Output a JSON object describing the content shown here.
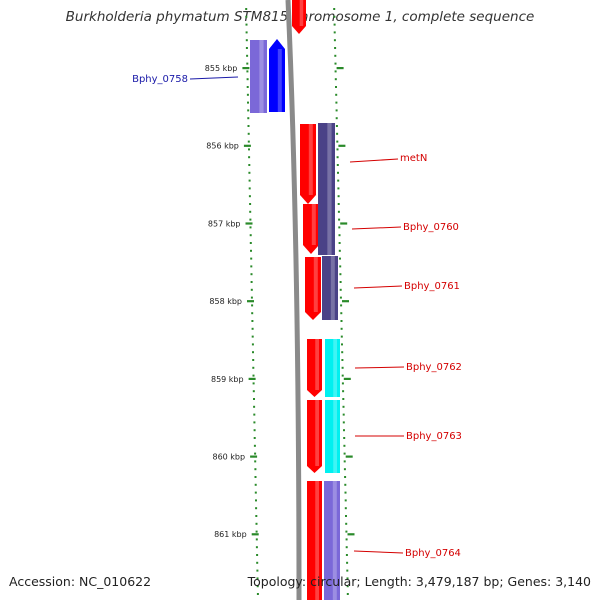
{
  "title": "Burkholderia phymatum STM815 chromosome 1, complete sequence",
  "accession": "Accession: NC_010622",
  "topology": "Topology: circular; Length: 3,479,187 bp; Genes: 3,140",
  "colors": {
    "forward": "#ff0000",
    "forward_blue": "#0000ff",
    "reverse_violet": "#7b68d8",
    "reverse_dark": "#4a4287",
    "reverse_cyan": "#00f0f0",
    "label_red": "#d40000",
    "label_blue": "#1a1aa8",
    "tick": "#2a8a2a",
    "backbone": "#8a8a8a"
  },
  "ticks": [
    {
      "label": "855 kbp",
      "kbp": 855
    },
    {
      "label": "856 kbp",
      "kbp": 856
    },
    {
      "label": "857 kbp",
      "kbp": 857
    },
    {
      "label": "858 kbp",
      "kbp": 858
    },
    {
      "label": "859 kbp",
      "kbp": 859
    },
    {
      "label": "860 kbp",
      "kbp": 860
    },
    {
      "label": "861 kbp",
      "kbp": 861
    }
  ],
  "genes": [
    {
      "name": "Bphy_0758",
      "color": "label_blue"
    },
    {
      "name": "metN",
      "color": "label_red"
    },
    {
      "name": "Bphy_0760",
      "color": "label_red"
    },
    {
      "name": "Bphy_0761",
      "color": "label_red"
    },
    {
      "name": "Bphy_0762",
      "color": "label_red"
    },
    {
      "name": "Bphy_0763",
      "color": "label_red"
    },
    {
      "name": "Bphy_0764",
      "color": "label_red"
    }
  ]
}
